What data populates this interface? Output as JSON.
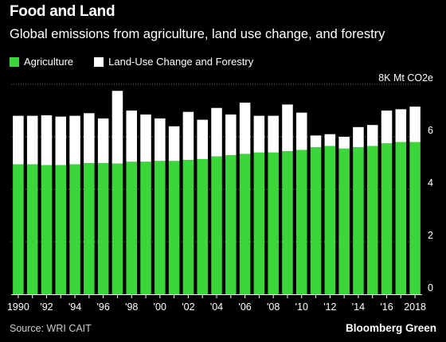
{
  "header": {
    "title": "Food and Land",
    "subtitle": "Global emissions from agriculture, land use change, and forestry"
  },
  "footer": {
    "source": "Source: WRI CAIT",
    "brand": "Bloomberg Green"
  },
  "colors": {
    "agriculture": "#3ad63a",
    "land_use": "#ffffff",
    "background": "#000000",
    "grid": "#777777"
  },
  "chart_data": {
    "type": "bar",
    "stacked": true,
    "title": "Food and Land",
    "subtitle": "Global emissions from agriculture, land use change, and forestry",
    "unit_label": "8K Mt CO2e",
    "categories": [
      "1990",
      "1991",
      "1992",
      "1993",
      "1994",
      "1995",
      "1996",
      "1997",
      "1998",
      "1999",
      "2000",
      "2001",
      "2002",
      "2003",
      "2004",
      "2005",
      "2006",
      "2007",
      "2008",
      "2009",
      "2010",
      "2011",
      "2012",
      "2013",
      "2014",
      "2015",
      "2016",
      "2017",
      "2018"
    ],
    "x_tick_labels": [
      "1990",
      "",
      "'92",
      "",
      "'94",
      "",
      "'96",
      "",
      "'98",
      "",
      "'00",
      "",
      "'02",
      "",
      "'04",
      "",
      "'06",
      "",
      "'08",
      "",
      "'10",
      "",
      "'12",
      "",
      "'14",
      "",
      "'16",
      "",
      "2018"
    ],
    "series": [
      {
        "name": "Agriculture",
        "values": [
          4.95,
          4.95,
          4.92,
          4.92,
          4.95,
          5.0,
          5.0,
          4.98,
          5.05,
          5.05,
          5.08,
          5.08,
          5.12,
          5.15,
          5.25,
          5.3,
          5.35,
          5.4,
          5.4,
          5.45,
          5.5,
          5.6,
          5.65,
          5.55,
          5.6,
          5.65,
          5.75,
          5.8,
          5.8
        ]
      },
      {
        "name": "Land-Use Change and Forestry",
        "values": [
          1.85,
          1.85,
          1.9,
          1.85,
          1.85,
          1.9,
          1.7,
          2.77,
          1.95,
          1.8,
          1.62,
          1.32,
          1.83,
          1.5,
          1.85,
          1.55,
          1.95,
          1.4,
          1.4,
          1.78,
          1.42,
          0.45,
          0.45,
          0.45,
          0.77,
          0.8,
          1.25,
          1.25,
          1.35
        ]
      }
    ],
    "y_ticks": [
      0,
      2,
      4,
      6,
      8
    ],
    "ylim": [
      0,
      8
    ],
    "grid": true,
    "legend_position": "top-left"
  }
}
